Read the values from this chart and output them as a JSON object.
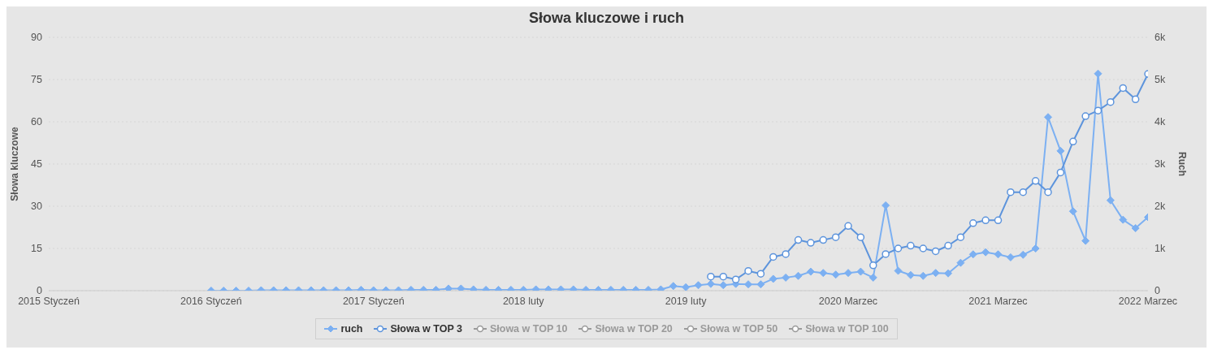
{
  "chart_data": {
    "type": "line",
    "title": "Słowa kluczowe i ruch",
    "ylabel": "Słowa kluczowe",
    "y2label": "Ruch",
    "categories": [
      "2015 Styczeń",
      null,
      null,
      null,
      null,
      null,
      null,
      null,
      null,
      null,
      null,
      null,
      null,
      "2016 Styczeń",
      null,
      null,
      null,
      null,
      null,
      null,
      null,
      null,
      null,
      null,
      null,
      null,
      "2017 Styczeń",
      null,
      null,
      null,
      null,
      null,
      null,
      null,
      null,
      null,
      null,
      null,
      "2018 luty",
      null,
      null,
      null,
      null,
      null,
      null,
      null,
      null,
      null,
      null,
      null,
      null,
      "2019 luty",
      null,
      null,
      null,
      null,
      null,
      null,
      null,
      null,
      null,
      null,
      null,
      null,
      "2020 Marzec",
      null,
      null,
      null,
      null,
      null,
      null,
      null,
      null,
      null,
      null,
      null,
      "2021 Marzec",
      null,
      null,
      null,
      null,
      null,
      null,
      null,
      null,
      null,
      null,
      null,
      "2022 Marzec"
    ],
    "series": [
      {
        "name": "ruch",
        "color": "#7cb0f2",
        "axis": "y2",
        "marker": "diamond",
        "values": [
          null,
          null,
          null,
          null,
          null,
          null,
          null,
          null,
          null,
          null,
          null,
          null,
          null,
          0,
          0,
          0,
          0,
          10,
          10,
          10,
          10,
          10,
          10,
          10,
          10,
          20,
          10,
          10,
          10,
          20,
          20,
          20,
          50,
          50,
          30,
          20,
          20,
          20,
          20,
          30,
          30,
          30,
          30,
          20,
          20,
          20,
          20,
          20,
          20,
          30,
          110,
          80,
          130,
          160,
          130,
          160,
          150,
          150,
          280,
          310,
          350,
          450,
          420,
          380,
          420,
          450,
          310,
          2020,
          470,
          370,
          350,
          420,
          410,
          660,
          860,
          910,
          860,
          790,
          850,
          1000,
          4110,
          3310,
          1880,
          1180,
          5140,
          2140,
          1680,
          1480,
          1740
        ]
      },
      {
        "name": "Słowa w TOP 3",
        "color": "#5d94dc",
        "marker": "circle",
        "values": [
          null,
          null,
          null,
          null,
          null,
          null,
          null,
          null,
          null,
          null,
          null,
          null,
          null,
          null,
          null,
          null,
          null,
          null,
          null,
          null,
          null,
          null,
          null,
          null,
          null,
          null,
          null,
          null,
          null,
          null,
          null,
          null,
          null,
          null,
          null,
          null,
          null,
          null,
          null,
          null,
          null,
          null,
          null,
          null,
          null,
          null,
          null,
          null,
          null,
          null,
          null,
          null,
          null,
          5,
          5,
          4,
          7,
          6,
          12,
          13,
          18,
          17,
          18,
          19,
          23,
          19,
          9,
          13,
          15,
          16,
          15,
          14,
          16,
          19,
          24,
          25,
          25,
          35,
          35,
          39,
          35,
          42,
          53,
          62,
          64,
          67,
          72,
          68,
          77
        ]
      },
      {
        "name": "Słowa w TOP 10",
        "color": "#9a9a9a",
        "marker": "circle",
        "values": [
          null,
          null,
          null,
          null,
          null,
          null,
          null,
          null,
          null,
          null,
          null,
          null,
          null,
          null,
          null,
          null,
          null,
          null,
          null,
          null,
          null,
          null,
          null,
          null,
          null,
          null,
          null,
          null,
          null,
          null,
          null,
          null,
          null,
          null,
          null,
          null,
          null,
          null,
          null,
          null,
          null,
          null,
          null,
          null,
          null,
          null,
          null,
          null,
          null,
          null,
          null,
          null,
          null,
          null,
          null,
          null,
          null,
          null,
          null,
          null,
          null,
          null,
          null,
          null,
          null,
          null,
          null,
          null,
          null,
          null,
          null,
          null,
          null,
          null,
          null,
          null,
          null,
          null,
          null,
          null,
          null,
          null,
          null,
          null,
          null,
          null,
          null,
          null,
          null
        ]
      },
      {
        "name": "Słowa w TOP 20",
        "color": "#9a9a9a",
        "marker": "circle",
        "values": [
          null,
          null,
          null,
          null,
          null,
          null,
          null,
          null,
          null,
          null,
          null,
          null,
          null,
          null,
          null,
          null,
          null,
          null,
          null,
          null,
          null,
          null,
          null,
          null,
          null,
          null,
          null,
          null,
          null,
          null,
          null,
          null,
          null,
          null,
          null,
          null,
          null,
          null,
          null,
          null,
          null,
          null,
          null,
          null,
          null,
          null,
          null,
          null,
          null,
          null,
          null,
          null,
          null,
          null,
          null,
          null,
          null,
          null,
          null,
          null,
          null,
          null,
          null,
          null,
          null,
          null,
          null,
          null,
          null,
          null,
          null,
          null,
          null,
          null,
          null,
          null,
          null,
          null,
          null,
          null,
          null,
          null,
          null,
          null,
          null,
          null,
          null,
          null,
          null
        ]
      },
      {
        "name": "Słowa w TOP 50",
        "color": "#9a9a9a",
        "marker": "circle",
        "values": [
          null,
          null,
          null,
          null,
          null,
          null,
          null,
          null,
          null,
          null,
          null,
          null,
          null,
          null,
          null,
          null,
          null,
          null,
          null,
          null,
          null,
          null,
          null,
          null,
          null,
          null,
          null,
          null,
          null,
          null,
          null,
          null,
          null,
          null,
          null,
          null,
          null,
          null,
          null,
          null,
          null,
          null,
          null,
          null,
          null,
          null,
          null,
          null,
          null,
          null,
          null,
          null,
          null,
          null,
          null,
          null,
          null,
          null,
          null,
          null,
          null,
          null,
          null,
          null,
          null,
          null,
          null,
          null,
          null,
          null,
          null,
          null,
          null,
          null,
          null,
          null,
          null,
          null,
          null,
          null,
          null,
          null,
          null,
          null,
          null,
          null,
          null,
          null,
          null
        ]
      },
      {
        "name": "Słowa w TOP 100",
        "color": "#9a9a9a",
        "marker": "circle",
        "values": [
          null,
          null,
          null,
          null,
          null,
          null,
          null,
          null,
          null,
          null,
          null,
          null,
          null,
          null,
          null,
          null,
          null,
          null,
          null,
          null,
          null,
          null,
          null,
          null,
          null,
          null,
          null,
          null,
          null,
          null,
          null,
          null,
          null,
          null,
          null,
          null,
          null,
          null,
          null,
          null,
          null,
          null,
          null,
          null,
          null,
          null,
          null,
          null,
          null,
          null,
          null,
          null,
          null,
          null,
          null,
          null,
          null,
          null,
          null,
          null,
          null,
          null,
          null,
          null,
          null,
          null,
          null,
          null,
          null,
          null,
          null,
          null,
          null,
          null,
          null,
          null,
          null,
          null,
          null,
          null,
          null,
          null,
          null,
          null,
          null,
          null,
          null,
          null,
          null
        ]
      }
    ],
    "ylim": [
      0,
      90
    ],
    "yticks": [
      0,
      15,
      30,
      45,
      60,
      75,
      90
    ],
    "y2lim": [
      0,
      6000
    ],
    "y2ticks": [
      0,
      {
        "value": 1000,
        "label": "1k"
      },
      {
        "value": 2000,
        "label": "2k"
      },
      {
        "value": 3000,
        "label": "3k"
      },
      {
        "value": 4000,
        "label": "4k"
      },
      {
        "value": 5000,
        "label": "5k"
      },
      {
        "value": 6000,
        "label": "6k"
      }
    ],
    "grid": "y",
    "legend": "bottom"
  }
}
